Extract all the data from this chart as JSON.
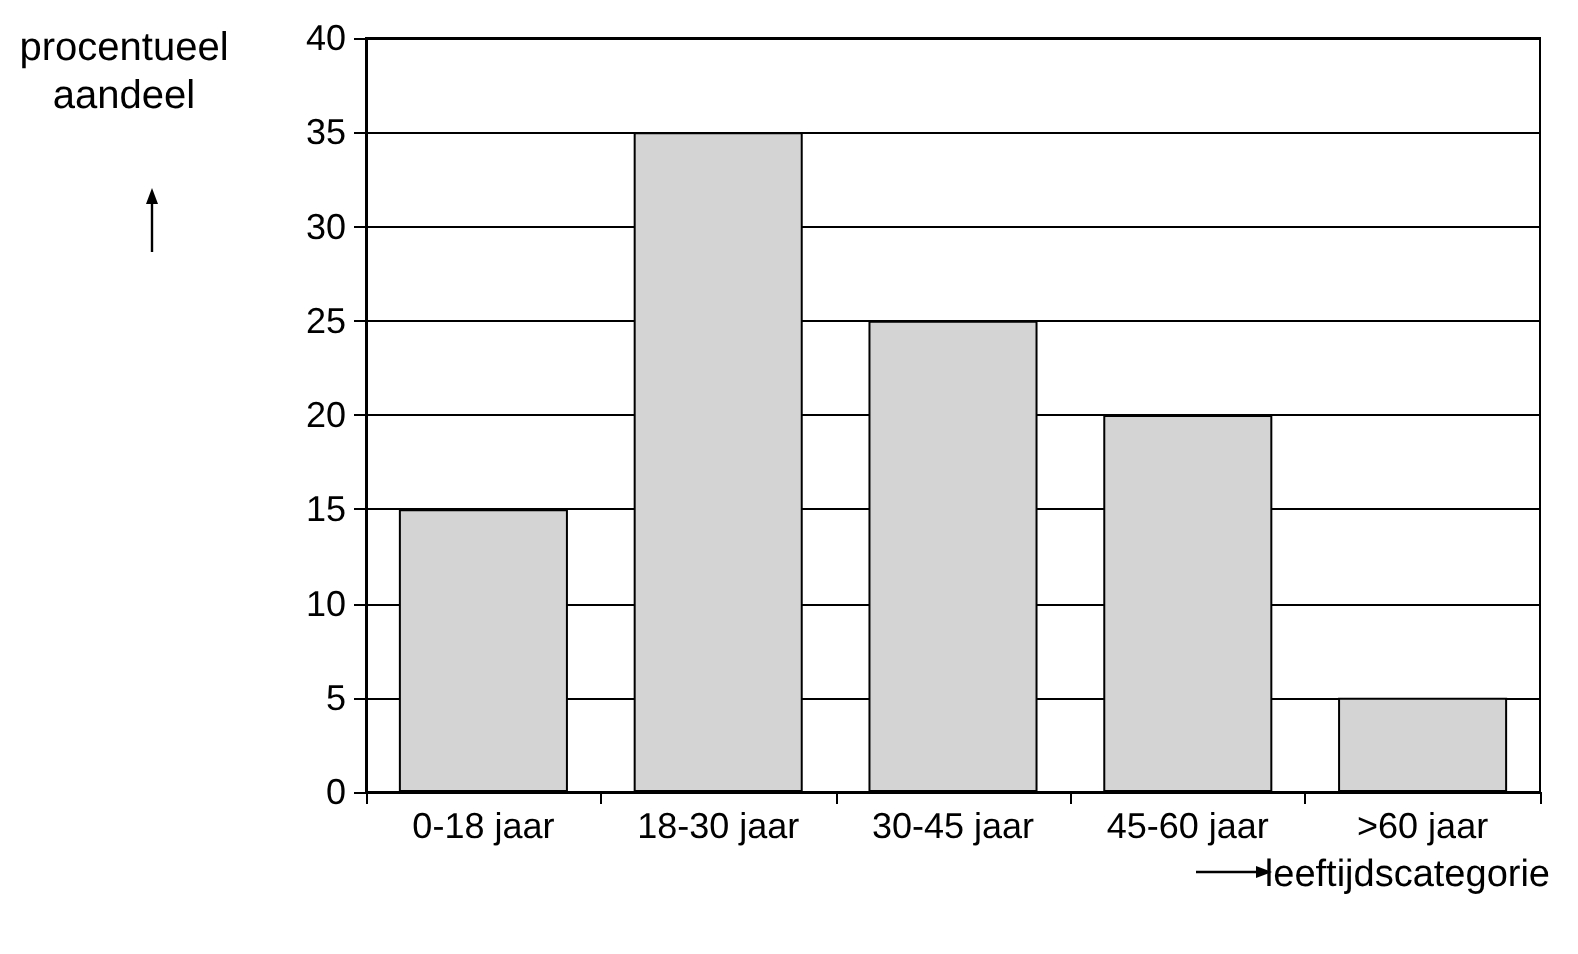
{
  "chart_data": {
    "type": "bar",
    "ylabel": "procentueel\naandeel",
    "xlabel": "leeftijdscategorie",
    "categories": [
      "0-18 jaar",
      "18-30 jaar",
      "30-45 jaar",
      "45-60 jaar",
      ">60 jaar"
    ],
    "values": [
      15,
      35,
      25,
      20,
      5
    ],
    "color": "#d4d4d4",
    "ylim": [
      0,
      40
    ],
    "yticks": [
      0,
      5,
      10,
      15,
      20,
      25,
      30,
      35,
      40
    ],
    "grid": "y"
  }
}
